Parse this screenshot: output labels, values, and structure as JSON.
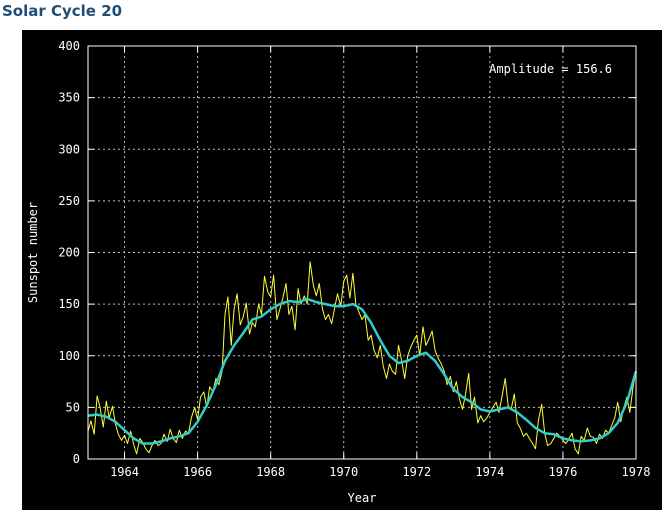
{
  "page": {
    "title": "Solar Cycle 20"
  },
  "chart_data": {
    "type": "line",
    "title": "",
    "xlabel": "Year",
    "ylabel": "Sunspot number",
    "xlim": [
      1963.0,
      1978.0
    ],
    "ylim": [
      0,
      400
    ],
    "x_ticks": [
      1964,
      1966,
      1968,
      1970,
      1972,
      1974,
      1976,
      1978
    ],
    "y_ticks": [
      0,
      50,
      100,
      150,
      200,
      250,
      300,
      350,
      400
    ],
    "grid": true,
    "background": "#000000",
    "annotation": "Amplitude = 156.6",
    "series": [
      {
        "color": "#ffff33",
        "x": [
          1963.0,
          1963.08,
          1963.17,
          1963.25,
          1963.33,
          1963.42,
          1963.5,
          1963.58,
          1963.67,
          1963.75,
          1963.83,
          1963.92,
          1964.0,
          1964.08,
          1964.17,
          1964.25,
          1964.33,
          1964.42,
          1964.5,
          1964.58,
          1964.67,
          1964.75,
          1964.83,
          1964.92,
          1965.0,
          1965.08,
          1965.17,
          1965.25,
          1965.33,
          1965.42,
          1965.5,
          1965.58,
          1965.67,
          1965.75,
          1965.83,
          1965.92,
          1966.0,
          1966.08,
          1966.17,
          1966.25,
          1966.33,
          1966.42,
          1966.5,
          1966.58,
          1966.67,
          1966.75,
          1966.83,
          1966.92,
          1967.0,
          1967.08,
          1967.17,
          1967.25,
          1967.33,
          1967.42,
          1967.5,
          1967.58,
          1967.67,
          1967.75,
          1967.83,
          1967.92,
          1968.0,
          1968.08,
          1968.17,
          1968.25,
          1968.33,
          1968.42,
          1968.5,
          1968.58,
          1968.67,
          1968.75,
          1968.83,
          1968.92,
          1969.0,
          1969.08,
          1969.17,
          1969.25,
          1969.33,
          1969.42,
          1969.5,
          1969.58,
          1969.67,
          1969.75,
          1969.83,
          1969.92,
          1970.0,
          1970.08,
          1970.17,
          1970.25,
          1970.33,
          1970.42,
          1970.5,
          1970.58,
          1970.67,
          1970.75,
          1970.83,
          1970.92,
          1971.0,
          1971.08,
          1971.17,
          1971.25,
          1971.33,
          1971.42,
          1971.5,
          1971.58,
          1971.67,
          1971.75,
          1971.83,
          1971.92,
          1972.0,
          1972.08,
          1972.17,
          1972.25,
          1972.33,
          1972.42,
          1972.5,
          1972.58,
          1972.67,
          1972.75,
          1972.83,
          1972.92,
          1973.0,
          1973.08,
          1973.17,
          1973.25,
          1973.33,
          1973.42,
          1973.5,
          1973.58,
          1973.67,
          1973.75,
          1973.83,
          1973.92,
          1974.0,
          1974.08,
          1974.17,
          1974.25,
          1974.33,
          1974.42,
          1974.5,
          1974.58,
          1974.67,
          1974.75,
          1974.83,
          1974.92,
          1975.0,
          1975.08,
          1975.17,
          1975.25,
          1975.33,
          1975.42,
          1975.5,
          1975.58,
          1975.67,
          1975.75,
          1975.83,
          1975.92,
          1976.0,
          1976.08,
          1976.17,
          1976.25,
          1976.33,
          1976.42,
          1976.5,
          1976.58,
          1976.67,
          1976.75,
          1976.83,
          1976.92,
          1977.0,
          1977.08,
          1977.17,
          1977.25,
          1977.33,
          1977.42,
          1977.5,
          1977.58,
          1977.67,
          1977.75,
          1977.83,
          1977.92,
          1978.0
        ],
        "y": [
          27,
          37,
          24,
          61,
          50,
          31,
          56,
          40,
          51,
          34,
          24,
          18,
          23,
          15,
          27,
          14,
          5,
          20,
          16,
          10,
          6,
          13,
          18,
          13,
          15,
          24,
          17,
          29,
          20,
          16,
          28,
          20,
          27,
          25,
          40,
          50,
          38,
          60,
          65,
          50,
          70,
          65,
          78,
          72,
          85,
          140,
          157,
          110,
          145,
          160,
          130,
          138,
          151,
          121,
          132,
          128,
          150,
          140,
          177,
          162,
          157,
          178,
          135,
          145,
          155,
          170,
          140,
          148,
          125,
          165,
          150,
          158,
          150,
          191,
          168,
          158,
          170,
          145,
          135,
          140,
          131,
          146,
          160,
          148,
          172,
          178,
          156,
          180,
          150,
          142,
          135,
          140,
          115,
          120,
          105,
          98,
          110,
          90,
          78,
          92,
          85,
          82,
          110,
          96,
          78,
          100,
          108,
          115,
          120,
          100,
          128,
          110,
          116,
          124,
          105,
          98,
          92,
          85,
          72,
          80,
          65,
          75,
          58,
          48,
          62,
          83,
          48,
          60,
          35,
          42,
          36,
          40,
          45,
          50,
          55,
          45,
          60,
          78,
          52,
          48,
          63,
          35,
          30,
          22,
          25,
          20,
          15,
          10,
          38,
          53,
          25,
          13,
          15,
          20,
          25,
          22,
          18,
          15,
          20,
          25,
          10,
          5,
          22,
          18,
          30,
          22,
          21,
          15,
          24,
          20,
          28,
          25,
          32,
          40,
          55,
          36,
          50,
          60,
          45,
          70,
          85
        ]
      },
      {
        "color": "#33cccc",
        "x": [
          1963.0,
          1963.25,
          1963.5,
          1963.75,
          1964.0,
          1964.25,
          1964.5,
          1964.75,
          1965.0,
          1965.25,
          1965.5,
          1965.75,
          1966.0,
          1966.25,
          1966.5,
          1966.75,
          1967.0,
          1967.25,
          1967.5,
          1967.75,
          1968.0,
          1968.25,
          1968.5,
          1968.75,
          1969.0,
          1969.25,
          1969.5,
          1969.75,
          1970.0,
          1970.25,
          1970.5,
          1970.75,
          1971.0,
          1971.25,
          1971.5,
          1971.75,
          1972.0,
          1972.25,
          1972.5,
          1972.75,
          1973.0,
          1973.25,
          1973.5,
          1973.75,
          1974.0,
          1974.25,
          1974.5,
          1974.75,
          1975.0,
          1975.25,
          1975.5,
          1975.75,
          1976.0,
          1976.25,
          1976.5,
          1976.75,
          1977.0,
          1977.25,
          1977.5,
          1977.75,
          1978.0
        ],
        "y": [
          42,
          43,
          41,
          36,
          28,
          20,
          15,
          15,
          17,
          20,
          22,
          25,
          36,
          52,
          72,
          95,
          110,
          122,
          135,
          138,
          145,
          150,
          153,
          152,
          155,
          152,
          150,
          148,
          148,
          150,
          145,
          132,
          115,
          100,
          93,
          95,
          100,
          103,
          95,
          82,
          68,
          60,
          55,
          48,
          46,
          48,
          50,
          45,
          38,
          30,
          25,
          24,
          20,
          18,
          17,
          18,
          20,
          25,
          35,
          55,
          85
        ]
      }
    ]
  }
}
